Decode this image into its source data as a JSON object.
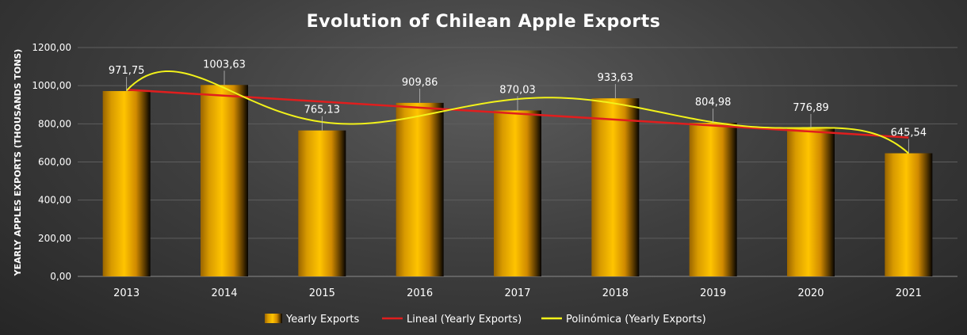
{
  "chart_data": {
    "type": "bar",
    "title": "Evolution of Chilean Apple Exports",
    "ylabel": "YEARLY APPLES EXPORTS (THOUSANDS TONS)",
    "xlabel": "",
    "categories": [
      "2013",
      "2014",
      "2015",
      "2016",
      "2017",
      "2018",
      "2019",
      "2020",
      "2021"
    ],
    "series": [
      {
        "name": "Yearly Exports",
        "values": [
          971.75,
          1003.63,
          765.13,
          909.86,
          870.03,
          933.63,
          804.98,
          776.89,
          645.54
        ],
        "labels": [
          "971,75",
          "1003,63",
          "765,13",
          "909,86",
          "870,03",
          "933,63",
          "804,98",
          "776,89",
          "645,54"
        ],
        "color": "#f5b400"
      }
    ],
    "trendlines": [
      {
        "name": "Lineal (Yearly Exports)",
        "type": "linear",
        "color": "#e01e1e"
      },
      {
        "name": "Polinómica (Yearly Exports)",
        "type": "polynomial",
        "color": "#f2f21a"
      }
    ],
    "ylim": [
      0,
      1200
    ],
    "yticks": [
      "0,00",
      "200,00",
      "400,00",
      "600,00",
      "800,00",
      "1000,00",
      "1200,00"
    ],
    "grid": true,
    "legend_position": "bottom"
  }
}
